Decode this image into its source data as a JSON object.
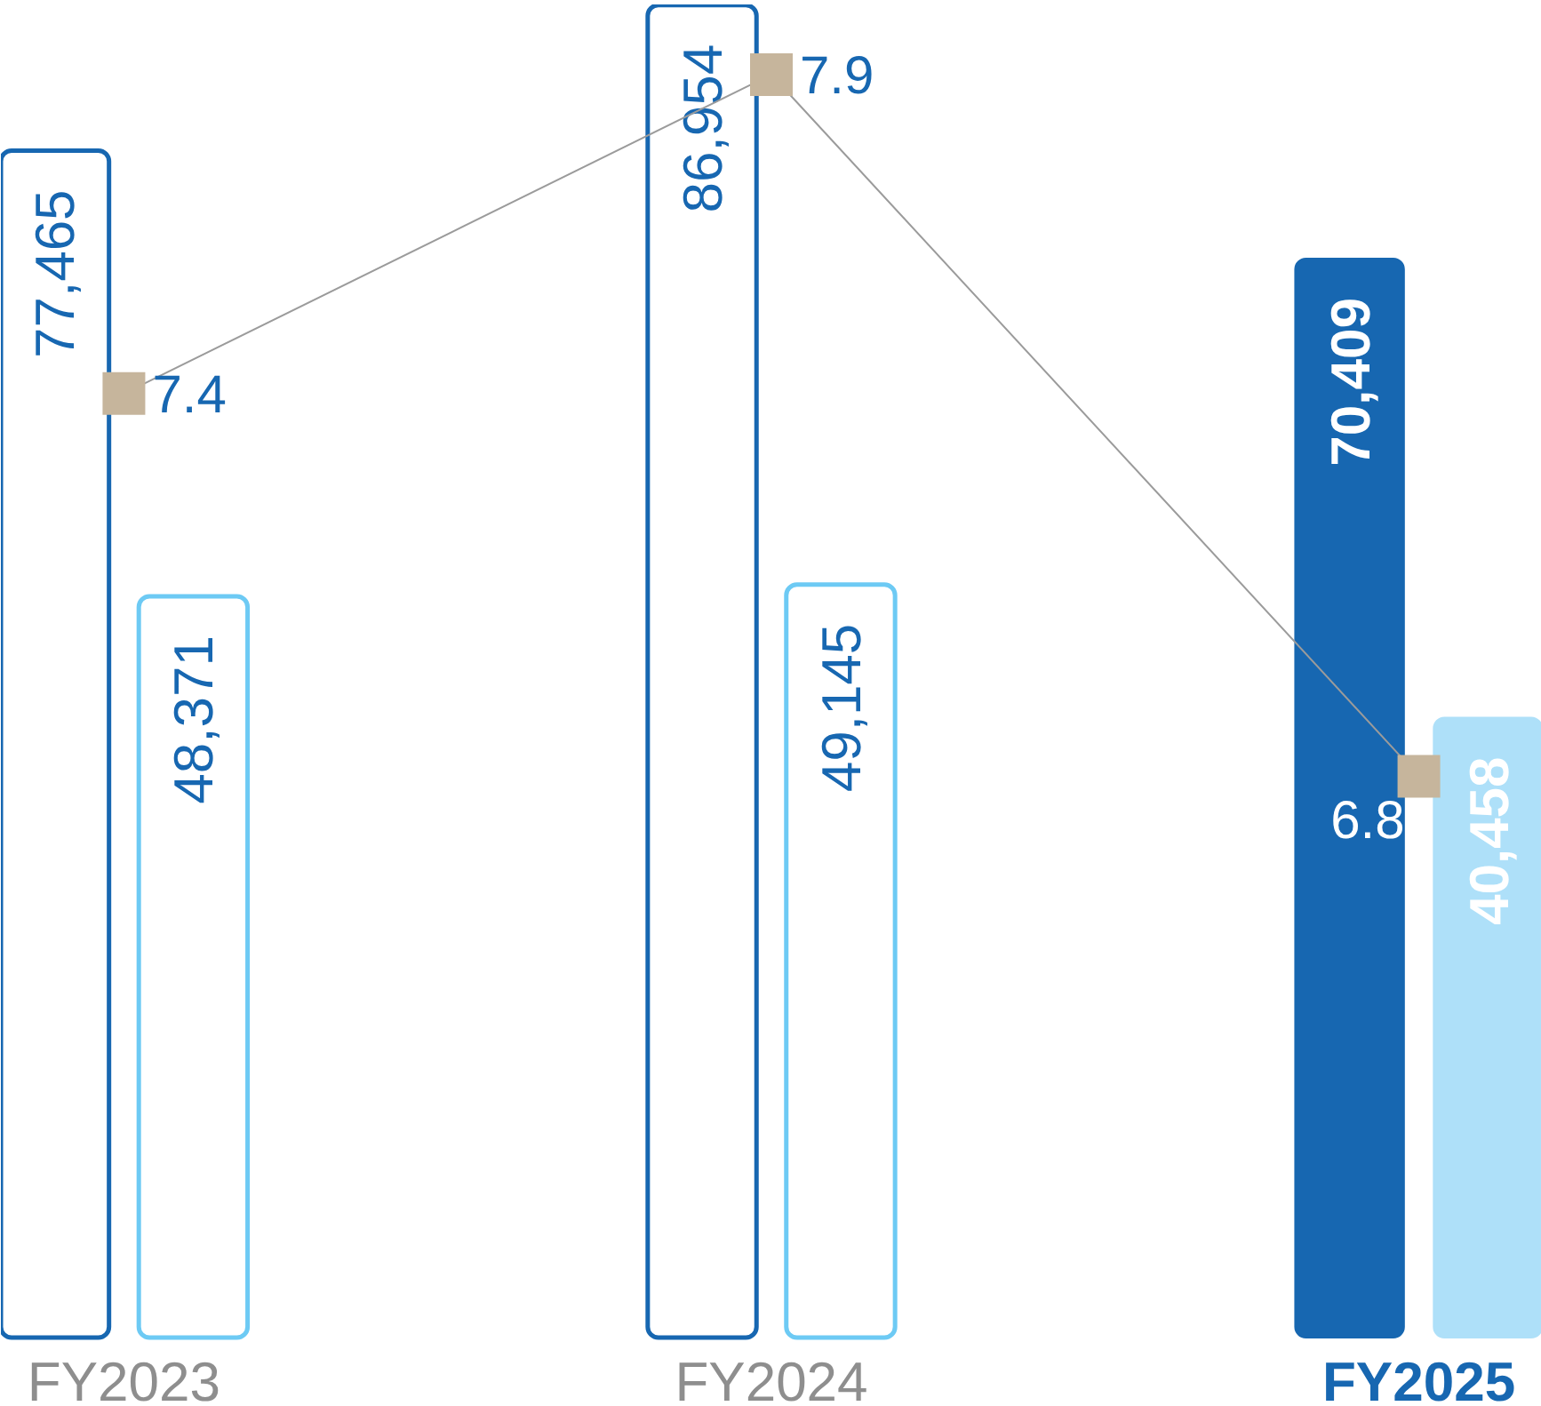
{
  "chart_data": {
    "type": "bar",
    "categories": [
      "FY2023",
      "FY2024",
      "FY2025"
    ],
    "series": [
      {
        "color": "#1767b1",
        "values": [
          77465,
          86954,
          70409
        ],
        "value_labels": [
          "77,465",
          "86,954",
          "70,409"
        ]
      },
      {
        "colors": [
          "#6dcaf4",
          "#6dcaf4",
          "#aee0f9"
        ],
        "values": [
          48371,
          49145,
          40458
        ],
        "value_labels": [
          "48,371",
          "49,145",
          "40,458"
        ]
      },
      {
        "type": "line",
        "axis": "y2",
        "color": "#9b9b9b",
        "colors": [
          "#c6b59c",
          "#c6b59c",
          "#c6b59c"
        ],
        "marker": "square",
        "line_style": "solid",
        "values": [
          7.4,
          7.9,
          6.8
        ],
        "value_labels": [
          "7.4",
          "7.9",
          "6.8"
        ]
      }
    ],
    "ylim": [
      0,
      87000
    ],
    "tick_labels": "x"
  }
}
